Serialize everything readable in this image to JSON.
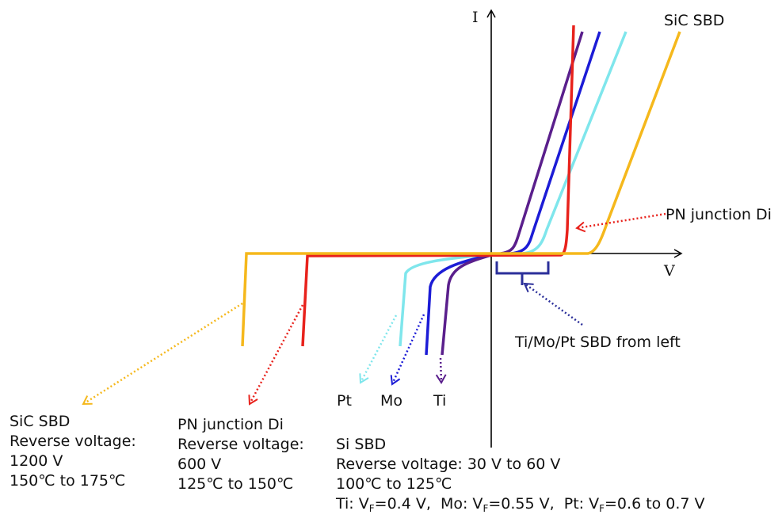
{
  "axes": {
    "y_label": "I",
    "x_label": "V"
  },
  "colors": {
    "sic": "#f5b81c",
    "pn": "#e8221c",
    "pt": "#7fe6ec",
    "mo": "#1c1cd6",
    "ti": "#5a1f8c",
    "bracket": "#2b2f9a",
    "axis": "#000000"
  },
  "labels": {
    "sic_top": "SiC SBD",
    "pn_right": "PN junction Di",
    "bracket_note": "Ti/Mo/Pt SBD from left",
    "pt": "Pt",
    "mo": "Mo",
    "ti": "Ti"
  },
  "blocks": {
    "sic": [
      "SiC SBD",
      "Reverse voltage:",
      "1200 V",
      "150℃ to 175℃"
    ],
    "pn": [
      "PN junction Di",
      "Reverse voltage:",
      "600 V",
      "125℃ to 150℃"
    ],
    "si": {
      "title": "Si SBD",
      "reverse": "Reverse voltage: 30 V to 60 V",
      "temp": "100℃ to 125℃",
      "ti_prefix": "Ti: V",
      "ti_value": "=0.4 V,",
      "mo_prefix": "Mo: V",
      "mo_value": "=0.55 V,",
      "pt_prefix": "Pt: V",
      "pt_value": "=0.6 to 0.7 V",
      "subscript": "F"
    }
  }
}
